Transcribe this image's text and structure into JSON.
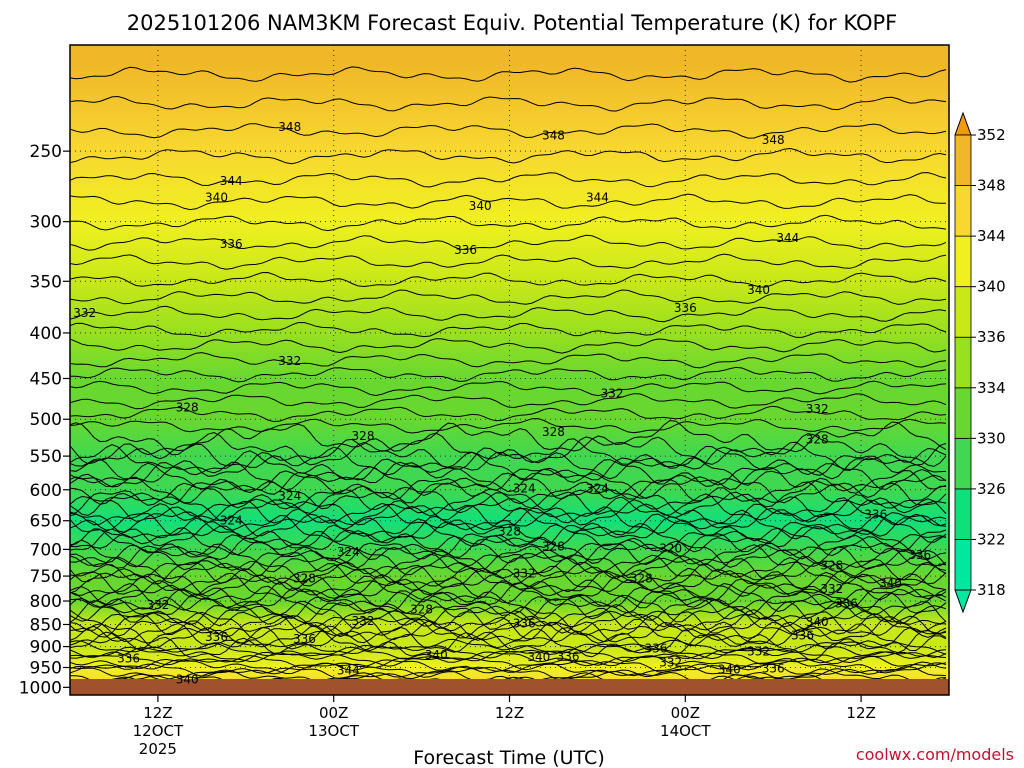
{
  "chart_data": {
    "type": "heatmap",
    "title": "2025101206 NAM3KM Forecast Equiv. Potential Temperature (K) for KOPF",
    "xlabel": "Forecast Time (UTC)",
    "ylabel": "",
    "credit": "coolwx.com/models",
    "yaxis": {
      "scale": "log",
      "range": [
        1020,
        190
      ],
      "ticks": [
        250,
        300,
        350,
        400,
        450,
        500,
        550,
        600,
        650,
        700,
        750,
        800,
        850,
        900,
        950,
        1000
      ]
    },
    "xaxis": {
      "range_hours": [
        0,
        60
      ],
      "ticks": [
        {
          "hour": 6,
          "lines": [
            "12Z",
            "12OCT",
            "2025"
          ]
        },
        {
          "hour": 18,
          "lines": [
            "00Z",
            "13OCT"
          ]
        },
        {
          "hour": 30,
          "lines": [
            "12Z"
          ]
        },
        {
          "hour": 42,
          "lines": [
            "00Z",
            "14OCT"
          ]
        },
        {
          "hour": 54,
          "lines": [
            "12Z"
          ]
        }
      ]
    },
    "colorbar": {
      "levels": [
        318,
        322,
        326,
        330,
        334,
        336,
        340,
        344,
        348,
        352
      ],
      "colors": [
        "#00e8a0",
        "#10e07a",
        "#40d850",
        "#68d830",
        "#98e020",
        "#c8e818",
        "#f0f020",
        "#f8d830",
        "#f0b828",
        "#f09a10"
      ],
      "extend": "both"
    },
    "levels_hpa": [
      200,
      250,
      300,
      350,
      400,
      450,
      500,
      550,
      600,
      650,
      700,
      750,
      800,
      850,
      900,
      950,
      1000
    ],
    "profile_theta_e": [
      351,
      347,
      343,
      338,
      335,
      333,
      331,
      329,
      326,
      325,
      327,
      330,
      333,
      336,
      338,
      341,
      345
    ],
    "contour_labels": [
      {
        "text": "348",
        "hour": 15,
        "p": 235
      },
      {
        "text": "348",
        "hour": 33,
        "p": 240
      },
      {
        "text": "348",
        "hour": 48,
        "p": 243
      },
      {
        "text": "344",
        "hour": 11,
        "p": 270
      },
      {
        "text": "344",
        "hour": 36,
        "p": 282
      },
      {
        "text": "344",
        "hour": 49,
        "p": 313
      },
      {
        "text": "340",
        "hour": 10,
        "p": 282
      },
      {
        "text": "340",
        "hour": 28,
        "p": 288
      },
      {
        "text": "340",
        "hour": 47,
        "p": 358
      },
      {
        "text": "336",
        "hour": 11,
        "p": 318
      },
      {
        "text": "336",
        "hour": 27,
        "p": 323
      },
      {
        "text": "336",
        "hour": 42,
        "p": 375
      },
      {
        "text": "332",
        "hour": 1,
        "p": 380
      },
      {
        "text": "332",
        "hour": 15,
        "p": 430
      },
      {
        "text": "332",
        "hour": 37,
        "p": 468
      },
      {
        "text": "332",
        "hour": 51,
        "p": 487
      },
      {
        "text": "328",
        "hour": 8,
        "p": 485
      },
      {
        "text": "328",
        "hour": 20,
        "p": 522
      },
      {
        "text": "328",
        "hour": 33,
        "p": 517
      },
      {
        "text": "328",
        "hour": 51,
        "p": 527
      },
      {
        "text": "324",
        "hour": 15,
        "p": 610
      },
      {
        "text": "324",
        "hour": 31,
        "p": 598
      },
      {
        "text": "324",
        "hour": 36,
        "p": 598
      },
      {
        "text": "324",
        "hour": 11,
        "p": 650
      },
      {
        "text": "324",
        "hour": 19,
        "p": 705
      },
      {
        "text": "328",
        "hour": 30,
        "p": 668
      },
      {
        "text": "328",
        "hour": 33,
        "p": 695
      },
      {
        "text": "320",
        "hour": 41,
        "p": 698
      },
      {
        "text": "328",
        "hour": 16,
        "p": 755
      },
      {
        "text": "332",
        "hour": 31,
        "p": 745
      },
      {
        "text": "328",
        "hour": 39,
        "p": 755
      },
      {
        "text": "328",
        "hour": 52,
        "p": 730
      },
      {
        "text": "336",
        "hour": 55,
        "p": 640
      },
      {
        "text": "336",
        "hour": 58,
        "p": 710
      },
      {
        "text": "332",
        "hour": 6,
        "p": 808
      },
      {
        "text": "332",
        "hour": 20,
        "p": 842
      },
      {
        "text": "328",
        "hour": 24,
        "p": 818
      },
      {
        "text": "336",
        "hour": 31,
        "p": 848
      },
      {
        "text": "332",
        "hour": 52,
        "p": 775
      },
      {
        "text": "336",
        "hour": 53,
        "p": 805
      },
      {
        "text": "340",
        "hour": 56,
        "p": 765
      },
      {
        "text": "340",
        "hour": 51,
        "p": 845
      },
      {
        "text": "336",
        "hour": 50,
        "p": 875
      },
      {
        "text": "336",
        "hour": 10,
        "p": 878
      },
      {
        "text": "336",
        "hour": 16,
        "p": 883
      },
      {
        "text": "336",
        "hour": 4,
        "p": 928
      },
      {
        "text": "340",
        "hour": 25,
        "p": 920
      },
      {
        "text": "340",
        "hour": 32,
        "p": 925
      },
      {
        "text": "336",
        "hour": 34,
        "p": 923
      },
      {
        "text": "336",
        "hour": 40,
        "p": 905
      },
      {
        "text": "332",
        "hour": 41,
        "p": 938
      },
      {
        "text": "332",
        "hour": 47,
        "p": 912
      },
      {
        "text": "340",
        "hour": 45,
        "p": 955
      },
      {
        "text": "336",
        "hour": 48,
        "p": 952
      },
      {
        "text": "340",
        "hour": 8,
        "p": 980
      },
      {
        "text": "344",
        "hour": 19,
        "p": 958
      }
    ]
  }
}
